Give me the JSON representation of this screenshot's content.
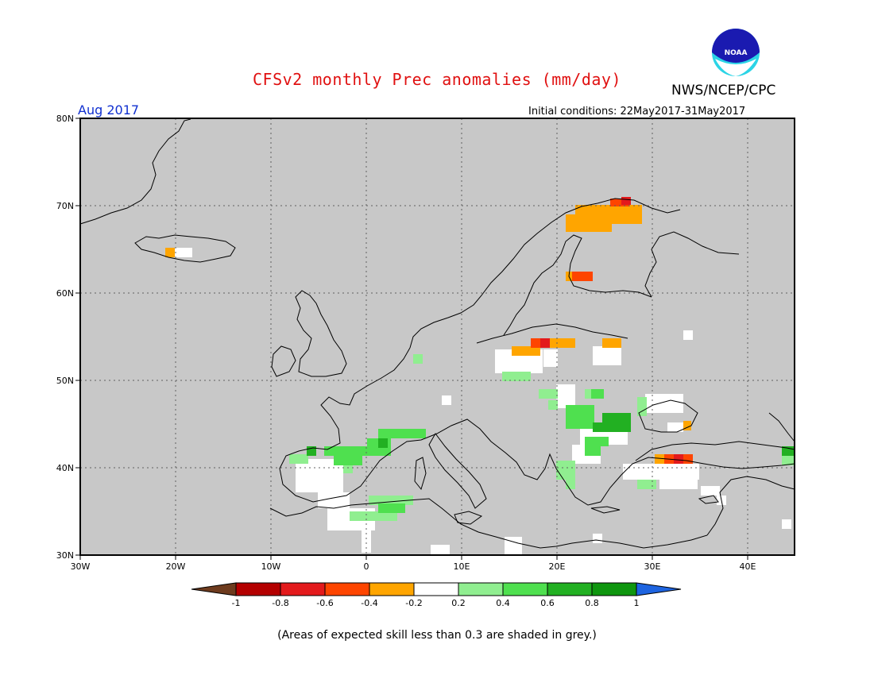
{
  "header": {
    "title": "CFSv2 monthly Prec anomalies (mm/day)",
    "org": "NWS/NCEP/CPC",
    "month": "Aug 2017",
    "initial_conditions": "Initial conditions: 22May2017-31May2017",
    "noaa_logo_text": "NOAA"
  },
  "footer": {
    "note": "(Areas of expected skill less than 0.3 are shaded in grey.)"
  },
  "map": {
    "region": "Europe",
    "lon_range": [
      -30,
      45
    ],
    "lat_range": [
      30,
      80
    ],
    "lon_ticks": [
      "30W",
      "20W",
      "10W",
      "0",
      "10E",
      "20E",
      "30E",
      "40E"
    ],
    "lat_ticks": [
      "30N",
      "40N",
      "50N",
      "60N",
      "70N",
      "80N"
    ],
    "background_color": "#c8c8c8"
  },
  "colorbar": {
    "labels": [
      "-1",
      "-0.8",
      "-0.6",
      "-0.4",
      "-0.2",
      "0.2",
      "0.4",
      "0.6",
      "0.8",
      "1"
    ],
    "colors": [
      "#6e3b1e",
      "#b40000",
      "#e31a1c",
      "#fe4500",
      "#ffa500",
      "#ffffff",
      "#90ee90",
      "#4fe04f",
      "#22b022",
      "#0f960f",
      "#1e64e0"
    ]
  }
}
